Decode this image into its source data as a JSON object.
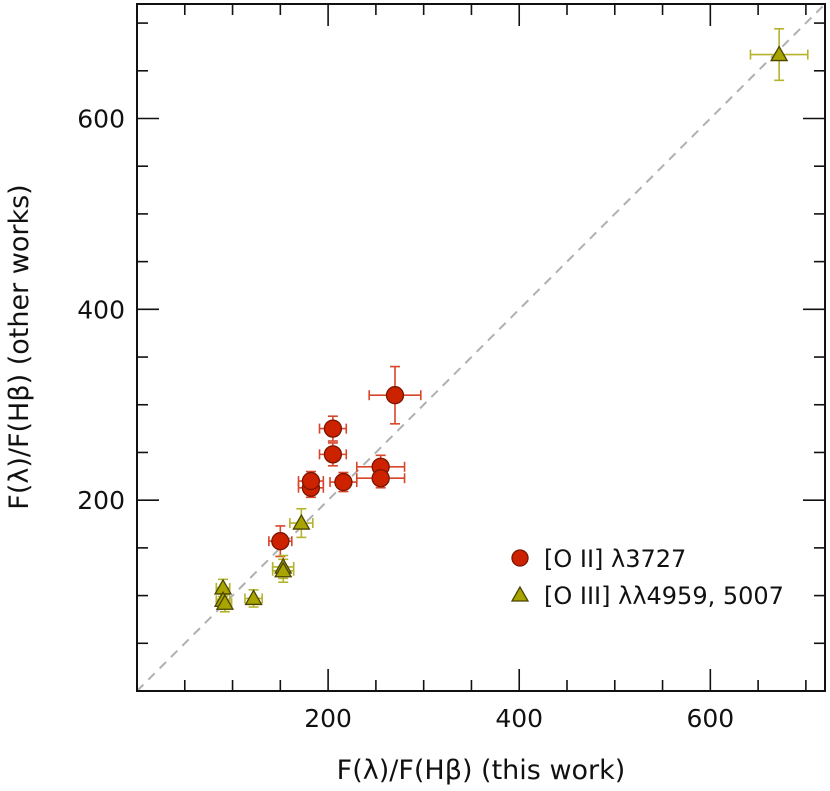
{
  "chart_data": {
    "type": "scatter",
    "xlabel": "F(λ)/F(Hβ) (this work)",
    "ylabel": "F(λ)/F(Hβ) (other works)",
    "xlim": [
      0,
      720
    ],
    "ylim": [
      0,
      720
    ],
    "x_ticks": [
      200,
      400,
      600
    ],
    "y_ticks": [
      200,
      400,
      600
    ],
    "x_tick_labels": [
      "200",
      "400",
      "600"
    ],
    "y_tick_labels": [
      "200",
      "400",
      "600"
    ],
    "minor_tick_step": 50,
    "reference_line": {
      "style": "dashed",
      "color": "#b0b0b0",
      "x": [
        0,
        720
      ],
      "y": [
        0,
        720
      ]
    },
    "legend_placement": "bottom-right",
    "series": [
      {
        "name": "[O II] λ3727",
        "marker": "circle",
        "color": "#cc2200",
        "edge_color": "#7a1500",
        "errorbar_color": "#d8452a",
        "points": [
          {
            "x": 150,
            "y": 157,
            "xerr": 12,
            "yerr": 16
          },
          {
            "x": 182,
            "y": 213,
            "xerr": 13,
            "yerr": 10
          },
          {
            "x": 182,
            "y": 220,
            "xerr": 13,
            "yerr": 10
          },
          {
            "x": 205,
            "y": 275,
            "xerr": 14,
            "yerr": 13
          },
          {
            "x": 205,
            "y": 248,
            "xerr": 14,
            "yerr": 12
          },
          {
            "x": 216,
            "y": 219,
            "xerr": 14,
            "yerr": 10
          },
          {
            "x": 255,
            "y": 235,
            "xerr": 25,
            "yerr": 12
          },
          {
            "x": 255,
            "y": 223,
            "xerr": 25,
            "yerr": 10
          },
          {
            "x": 270,
            "y": 310,
            "xerr": 27,
            "yerr": 30
          }
        ]
      },
      {
        "name": "[O III] λλ4959, 5007",
        "marker": "triangle",
        "color": "#a8a400",
        "edge_color": "#4a4400",
        "errorbar_color": "#b5b32c",
        "points": [
          {
            "x": 90,
            "y": 108,
            "xerr": 7,
            "yerr": 9
          },
          {
            "x": 90,
            "y": 95,
            "xerr": 7,
            "yerr": 9
          },
          {
            "x": 92,
            "y": 92,
            "xerr": 7,
            "yerr": 9
          },
          {
            "x": 122,
            "y": 97,
            "xerr": 9,
            "yerr": 9
          },
          {
            "x": 153,
            "y": 130,
            "xerr": 11,
            "yerr": 12
          },
          {
            "x": 153,
            "y": 126,
            "xerr": 11,
            "yerr": 12
          },
          {
            "x": 172,
            "y": 176,
            "xerr": 12,
            "yerr": 15
          },
          {
            "x": 672,
            "y": 667,
            "xerr": 30,
            "yerr": 27
          }
        ]
      }
    ]
  }
}
